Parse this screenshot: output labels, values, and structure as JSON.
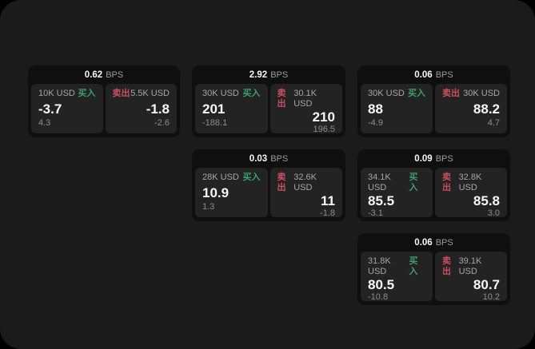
{
  "labels": {
    "bps_unit": "BPS",
    "buy": "买入",
    "sell": "卖出"
  },
  "colors": {
    "buy_accent": "#3d9e6b",
    "sell_accent": "#c94f5e",
    "panel_background": "#1b1b1c",
    "card_background": "#0f0f10",
    "pane_background": "#232324"
  },
  "cards": [
    {
      "bps": "0.62",
      "buy": {
        "amount": "10K USD",
        "price": "-3.7",
        "delta": "4.3"
      },
      "sell": {
        "amount": "5.5K USD",
        "price": "-1.8",
        "delta": "-2.6"
      }
    },
    {
      "bps": "2.92",
      "buy": {
        "amount": "30K USD",
        "price": "201",
        "delta": "-188.1"
      },
      "sell": {
        "amount": "30.1K USD",
        "price": "210",
        "delta": "196.5"
      }
    },
    {
      "bps": "0.06",
      "buy": {
        "amount": "30K USD",
        "price": "88",
        "delta": "-4.9"
      },
      "sell": {
        "amount": "30K USD",
        "price": "88.2",
        "delta": "4.7"
      }
    },
    {
      "bps": "0.03",
      "buy": {
        "amount": "28K USD",
        "price": "10.9",
        "delta": "1.3"
      },
      "sell": {
        "amount": "32.6K USD",
        "price": "11",
        "delta": "-1.8"
      }
    },
    {
      "bps": "0.09",
      "buy": {
        "amount": "34.1K USD",
        "price": "85.5",
        "delta": "-3.1"
      },
      "sell": {
        "amount": "32.8K USD",
        "price": "85.8",
        "delta": "3.0"
      }
    },
    {
      "bps": "0.06",
      "buy": {
        "amount": "31.8K USD",
        "price": "80.5",
        "delta": "-10.8"
      },
      "sell": {
        "amount": "39.1K USD",
        "price": "80.7",
        "delta": "10.2"
      }
    }
  ]
}
